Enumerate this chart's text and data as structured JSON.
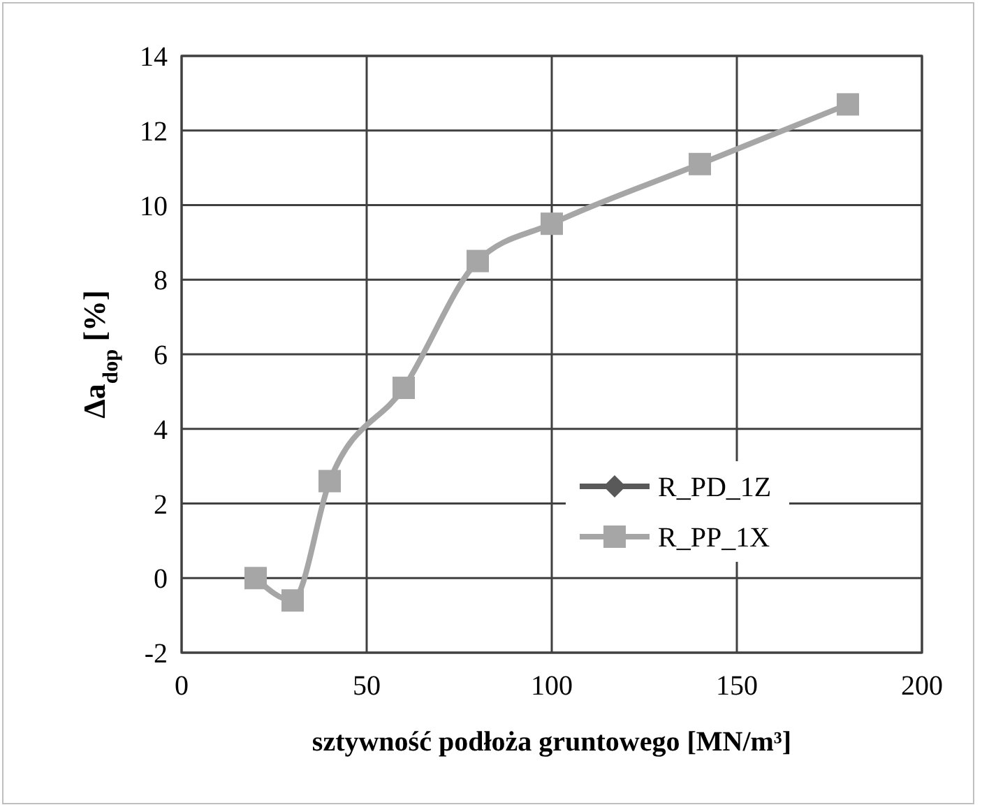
{
  "chart_data": {
    "type": "line",
    "xlabel": "sztywność podłoża gruntowego [MN/m³]",
    "ylabel": "Δa$_{dop}$ [%]",
    "xlim": [
      0,
      200
    ],
    "xticks": [
      0,
      50,
      100,
      150,
      200
    ],
    "ylim": [
      -2,
      14
    ],
    "yticks": [
      -2,
      0,
      2,
      4,
      6,
      8,
      10,
      12,
      14
    ],
    "grid": true,
    "legend": "bottom right",
    "line_style": "solid",
    "x": [
      20,
      30,
      40,
      60,
      80,
      100,
      140,
      180
    ],
    "series": [
      {
        "name": "R_PD_1Z",
        "color": "#595959",
        "marker": "diamond",
        "values": [
          null,
          null,
          null,
          null,
          null,
          null,
          null,
          null
        ]
      },
      {
        "name": "R_PP_1X",
        "color": "#a6a6a6",
        "marker": "square",
        "values": [
          0,
          -0.6,
          2.6,
          5.1,
          8.5,
          9.5,
          11.1,
          12.7
        ]
      }
    ]
  }
}
